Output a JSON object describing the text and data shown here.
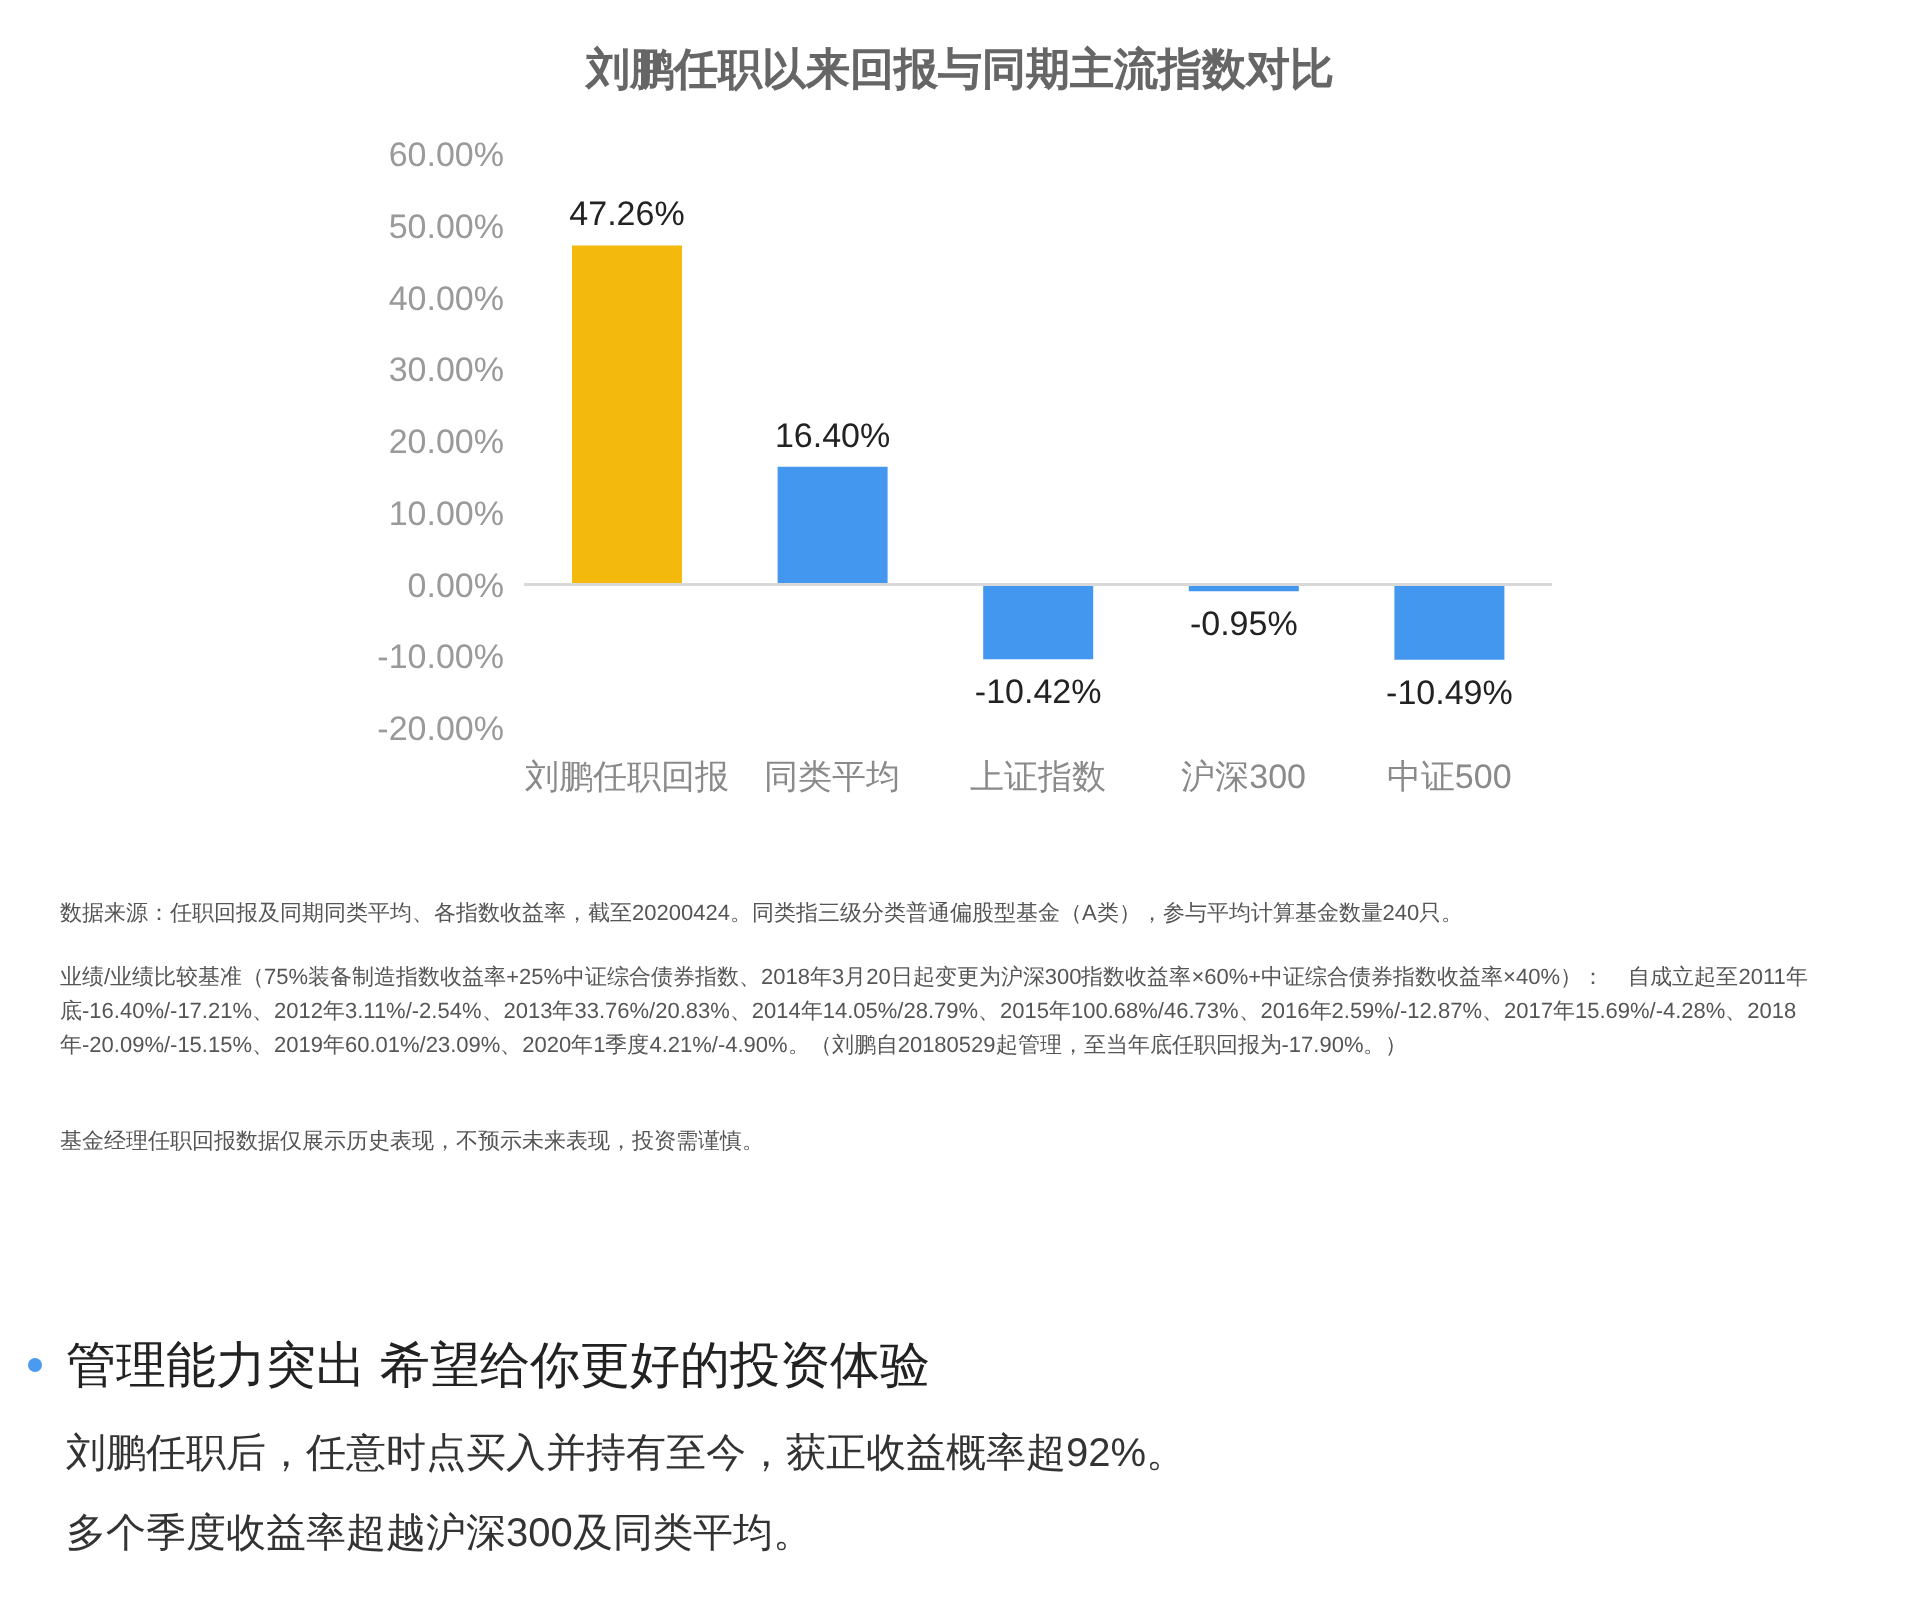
{
  "chart_data": {
    "type": "bar",
    "title": "刘鹏任职以来回报与同期主流指数对比",
    "categories": [
      "刘鹏任职回报",
      "同类平均",
      "上证指数",
      "沪深300",
      "中证500"
    ],
    "values": [
      47.26,
      16.4,
      -10.42,
      -0.95,
      -10.49
    ],
    "colors": [
      "#f4b90d",
      "#4497ee",
      "#4497ee",
      "#4497ee",
      "#4497ee"
    ],
    "value_labels": [
      "47.26%",
      "16.40%",
      "-10.42%",
      "-0.95%",
      "-10.49%"
    ],
    "ylim": [
      -20,
      60
    ],
    "yticks": [
      {
        "value": -20,
        "label": "-20.00%"
      },
      {
        "value": -10,
        "label": "-10.00%"
      },
      {
        "value": 0,
        "label": "0.00%"
      },
      {
        "value": 10,
        "label": "10.00%"
      },
      {
        "value": 20,
        "label": "20.00%"
      },
      {
        "value": 30,
        "label": "30.00%"
      },
      {
        "value": 40,
        "label": "40.00%"
      },
      {
        "value": 50,
        "label": "50.00%"
      },
      {
        "value": 60,
        "label": "60.00%"
      }
    ],
    "annotations": [
      "数据来源：任职回报及同期同类平均、各指数收益率，截至20200424。同类指三级分类普通偏股型基金（A类），参与平均计算基金数量240只。",
      "业绩/业绩比较基准（75%装备制造指数收益率+25%中证综合债券指数、2018年3月20日起变更为沪深300指数收益率×60%+中证综合债券指数收益率×40%）：    自成立起至2011年底-16.40%/-17.21%、2012年3.11%/-2.54%、2013年33.76%/20.83%、2014年14.05%/28.79%、2015年100.68%/46.73%、2016年2.59%/-12.87%、2017年15.69%/-4.28%、2018年-20.09%/-15.15%、2019年60.01%/23.09%、2020年1季度4.21%/-4.90%。（刘鹏自20180529起管理，至当年底任职回报为-17.90%。）",
      "基金经理任职回报数据仅展示历史表现，不预示未来表现，投资需谨慎。",
      "管理能力突出 希望给你更好的投资体验",
      "刘鹏任职后，任意时点买入并持有至今，获正收益概率超92%。",
      "多个季度收益率超越沪深300及同类平均。"
    ]
  }
}
